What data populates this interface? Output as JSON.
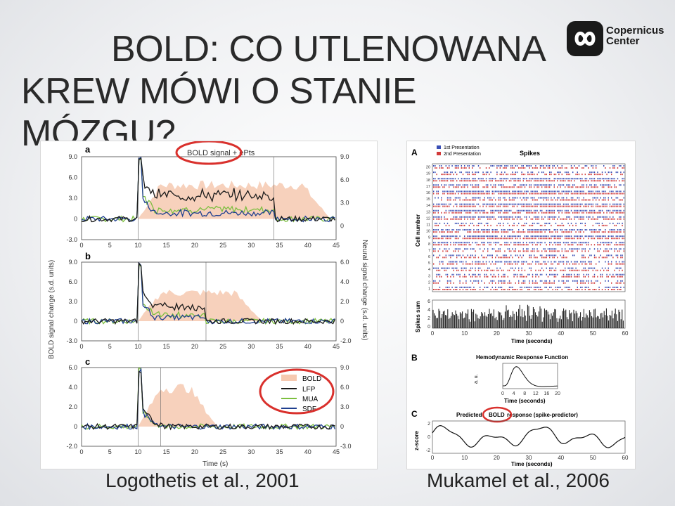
{
  "slide": {
    "title_line1": "BOLD: CO UTLENOWANA",
    "title_line2": "KREW MÓWI O STANIE MÓZGU?",
    "logo_line1": "Copernicus",
    "logo_line2": "Center",
    "caption_left": "Logothetis et al., 2001",
    "caption_right": "Mukamel et al., 2006"
  },
  "colors": {
    "bold_fill": "#f6c9b0",
    "lfp": "#1a1a1a",
    "mua": "#7cbf3f",
    "sdf": "#1f3f8f",
    "highlight_circle": "#d9302c",
    "raster_blue": "#3a4fb5",
    "raster_red": "#d23a3a"
  },
  "figure_left": {
    "panel_labels": [
      "a",
      "b",
      "c"
    ],
    "top_annotation_a": "BOLD signal + ePts",
    "left_axis_label": "BOLD signal change (s.d. units)",
    "right_axis_label": "Neural signal change (s.d. units)",
    "x_label": "Time (s)",
    "x_ticks": [
      "0",
      "5",
      "10",
      "15",
      "20",
      "25",
      "30",
      "35",
      "40",
      "45"
    ],
    "left_ticks_ab": [
      "9.0",
      "6.0",
      "3.0",
      "0",
      "-3.0"
    ],
    "left_ticks_c": [
      "6.0",
      "4.0",
      "2.0",
      "0",
      "-2.0"
    ],
    "right_ticks_a": [
      "9.0",
      "6.0",
      "3.0",
      "0"
    ],
    "right_ticks_b": [
      "6.0",
      "4.0",
      "2.0",
      "0",
      "-2.0"
    ],
    "right_ticks_c": [
      "9.0",
      "6.0",
      "3.0",
      "0",
      "-3.0"
    ],
    "legend": [
      "BOLD",
      "LFP",
      "MUA",
      "SDF"
    ]
  },
  "figure_right": {
    "label_a": "A",
    "label_b": "B",
    "label_c": "C",
    "legend_1": "1st Presentation",
    "legend_2": "2nd Presentation",
    "raster_title": "Spikes",
    "cell_axis_label": "Cell number",
    "cell_ticks": [
      "20",
      "19",
      "18",
      "17",
      "16",
      "15",
      "14",
      "13",
      "12",
      "11",
      "10",
      "9",
      "8",
      "7",
      "6",
      "5",
      "4",
      "3",
      "2",
      "1"
    ],
    "spikes_sum_label": "Spikes sum",
    "spikes_sum_ticks": [
      "6",
      "4",
      "2",
      "0"
    ],
    "time_ticks": [
      "0",
      "10",
      "20",
      "30",
      "40",
      "50",
      "60"
    ],
    "time_label": "Time (seconds)",
    "hrf_title": "Hemodynamic Response Function",
    "hrf_ylabel": "a. u.",
    "hrf_ticks": [
      "0",
      "4",
      "8",
      "12",
      "16",
      "20"
    ],
    "hrf_time_label": "Time (seconds)",
    "pred_title_pre": "Predicted",
    "pred_title_bold": "BOLD",
    "pred_title_post": "response (spike-predictor)",
    "z_label": "z-score",
    "z_ticks": [
      "2",
      "0",
      "-2"
    ],
    "pred_time_ticks": [
      "0",
      "10",
      "20",
      "30",
      "40",
      "50",
      "60"
    ],
    "pred_time_label": "Time (seconds)"
  }
}
